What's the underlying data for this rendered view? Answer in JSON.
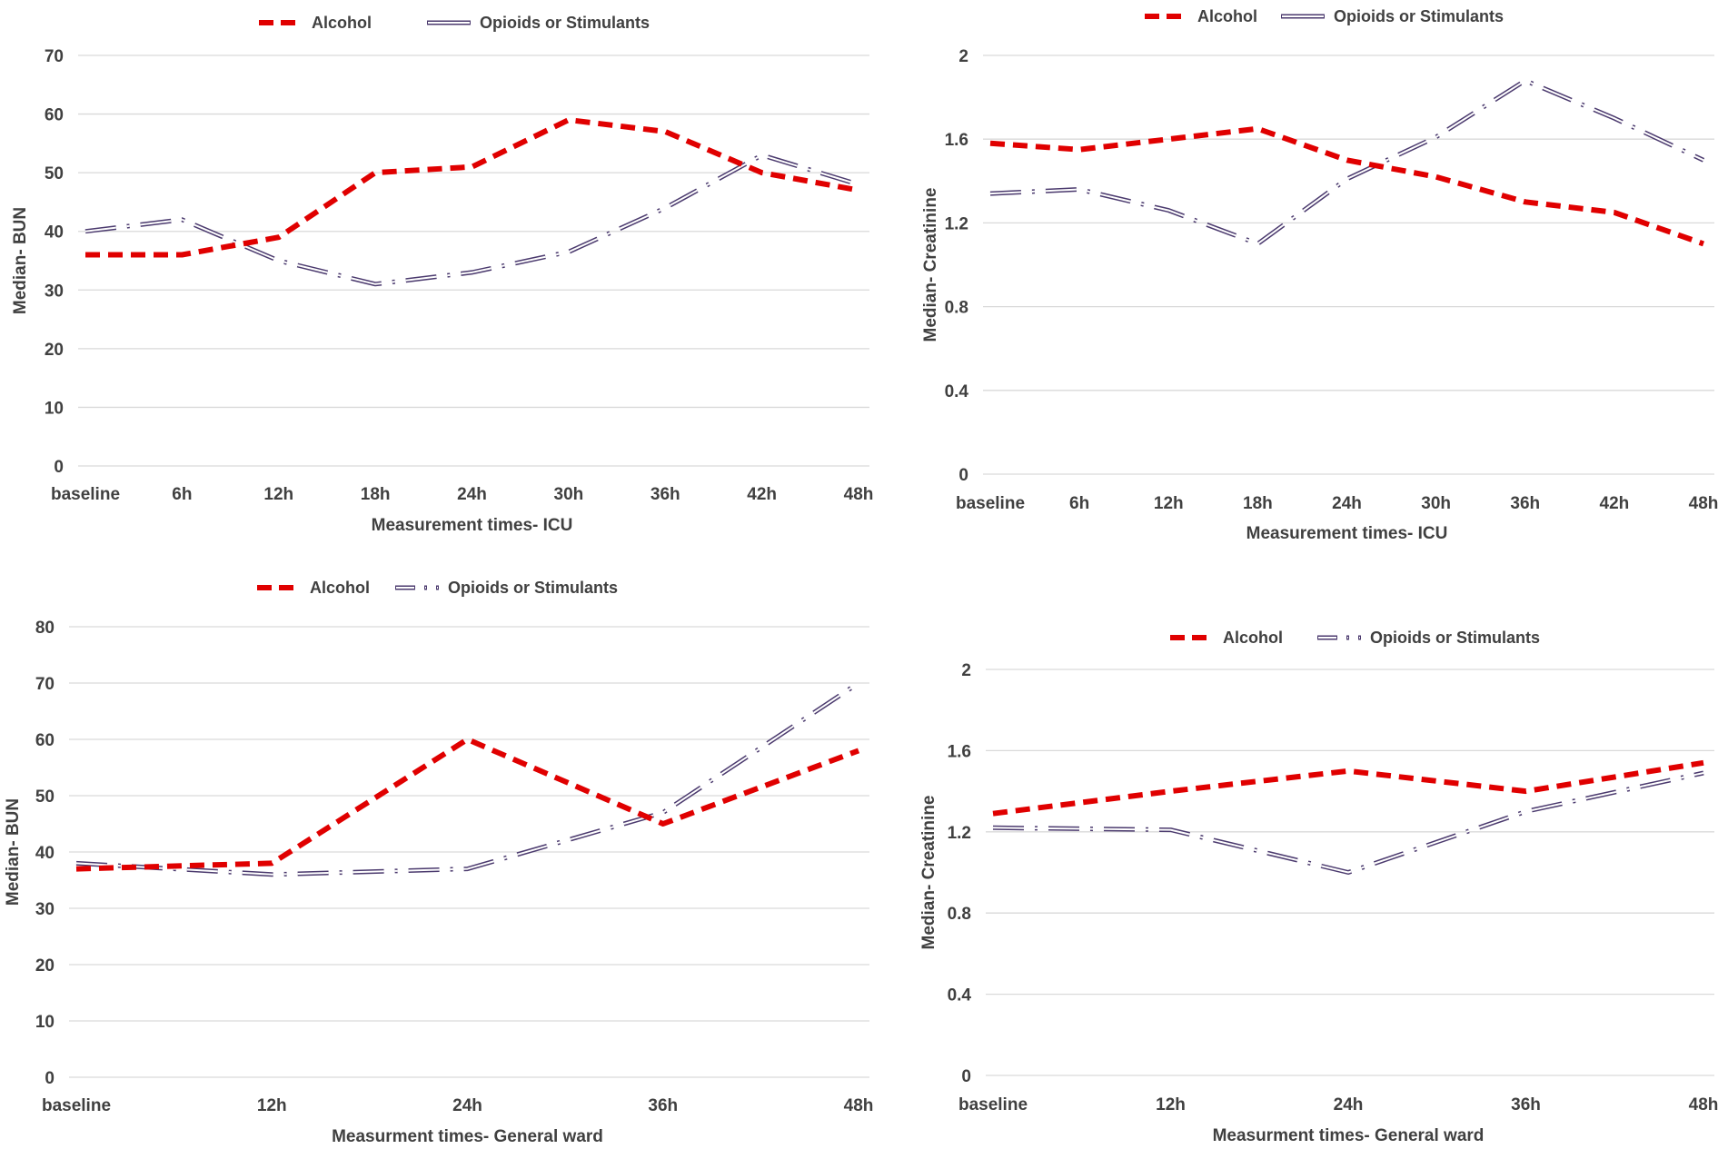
{
  "colors": {
    "alcohol": "#e00000",
    "opioids": "#4b3a6e",
    "grid": "#d9d9d9",
    "text": "#404040"
  },
  "chart_data": [
    {
      "id": "icu-bun",
      "type": "line",
      "title": "",
      "xlabel": "Measurement times- ICU",
      "ylabel": "Median- BUN",
      "categories": [
        "baseline",
        "6h",
        "12h",
        "18h",
        "24h",
        "30h",
        "36h",
        "42h",
        "48h"
      ],
      "ylim": [
        0,
        70
      ],
      "yticks": [
        "0",
        "10",
        "20",
        "30",
        "40",
        "50",
        "60",
        "70"
      ],
      "legend": "top",
      "series": [
        {
          "name": "Alcohol",
          "values": [
            36,
            36,
            39,
            50,
            51,
            59,
            57,
            50,
            47
          ]
        },
        {
          "name": "Opioids or Stimulants",
          "values": [
            40,
            42,
            35,
            31,
            33,
            36.5,
            44,
            53,
            48
          ]
        }
      ]
    },
    {
      "id": "icu-creatinine",
      "type": "line",
      "title": "",
      "xlabel": "Measurement times- ICU",
      "ylabel": "Median- Creatinine",
      "categories": [
        "baseline",
        "6h",
        "12h",
        "18h",
        "24h",
        "30h",
        "36h",
        "42h",
        "48h"
      ],
      "ylim": [
        0,
        2
      ],
      "yticks": [
        "0",
        "0.4",
        "0.8",
        "1.2",
        "1.6",
        "2"
      ],
      "legend": "top",
      "series": [
        {
          "name": "Alcohol",
          "values": [
            1.58,
            1.55,
            1.6,
            1.65,
            1.5,
            1.42,
            1.3,
            1.25,
            1.1
          ]
        },
        {
          "name": "Opioids or Stimulants",
          "values": [
            1.34,
            1.36,
            1.26,
            1.1,
            1.41,
            1.61,
            1.88,
            1.7,
            1.5
          ]
        }
      ]
    },
    {
      "id": "ward-bun",
      "type": "line",
      "title": "",
      "xlabel": "Measurment times- General ward",
      "ylabel": "Median- BUN",
      "categories": [
        "baseline",
        "12h",
        "24h",
        "36h",
        "48h"
      ],
      "ylim": [
        0,
        80
      ],
      "yticks": [
        "0",
        "10",
        "20",
        "30",
        "40",
        "50",
        "60",
        "70",
        "80"
      ],
      "legend": "top",
      "series": [
        {
          "name": "Alcohol",
          "values": [
            37,
            38,
            60,
            45,
            58
          ]
        },
        {
          "name": "Opioids or Stimulants",
          "values": [
            38,
            36,
            37,
            47,
            70
          ]
        }
      ]
    },
    {
      "id": "ward-creatinine",
      "type": "line",
      "title": "",
      "xlabel": "Measurment times- General ward",
      "ylabel": "Median- Creatinine",
      "categories": [
        "baseline",
        "12h",
        "24h",
        "36h",
        "48h"
      ],
      "ylim": [
        0,
        2
      ],
      "yticks": [
        "0",
        "0.4",
        "0.8",
        "1.2",
        "1.6",
        "2"
      ],
      "legend": "top",
      "series": [
        {
          "name": "Alcohol",
          "values": [
            1.29,
            1.4,
            1.5,
            1.4,
            1.54
          ]
        },
        {
          "name": "Opioids or Stimulants",
          "values": [
            1.22,
            1.21,
            1.0,
            1.3,
            1.49
          ]
        }
      ]
    }
  ]
}
